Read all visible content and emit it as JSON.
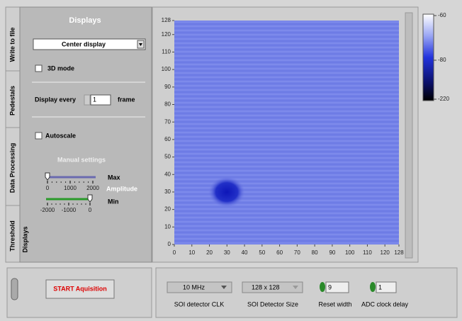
{
  "tabs": [
    "Write to file",
    "Pedestals",
    "Data Processing",
    "Threshold",
    "Displays"
  ],
  "panel": {
    "title": "Displays",
    "display_select": "Center display",
    "mode_3d": "3D mode",
    "display_every": "Display every",
    "display_every_value": 1,
    "frame": "frame",
    "autoscale": "Autoscale",
    "manual_settings": "Manual settings",
    "max_label": "Max",
    "amplitude": "Amplitude",
    "min_label": "Min",
    "max_slider": {
      "ticks": [
        0,
        1000,
        2000
      ],
      "value": 0
    },
    "min_slider": {
      "ticks": [
        -2000,
        -1000,
        0
      ],
      "value": 0
    }
  },
  "chart_data": {
    "type": "heatmap",
    "xlim": [
      0,
      128
    ],
    "ylim": [
      0,
      128
    ],
    "xticks": [
      0,
      10,
      20,
      30,
      40,
      50,
      60,
      70,
      80,
      90,
      100,
      110,
      120,
      128
    ],
    "yticks": [
      0,
      10,
      20,
      30,
      40,
      50,
      60,
      70,
      80,
      90,
      100,
      110,
      120,
      128
    ],
    "colorbar_ticks": [
      -60,
      -80,
      -220
    ]
  },
  "controls": {
    "start_button": "START Aquisition",
    "clk": {
      "value": "10 MHz",
      "label": "SOI detector CLK"
    },
    "size": {
      "value": "128 x 128",
      "label": "SOI Detector Size"
    },
    "reset_width": {
      "value": 9,
      "label": "Reset width"
    },
    "adc_delay": {
      "value": 1,
      "label": "ADC clock delay"
    }
  }
}
